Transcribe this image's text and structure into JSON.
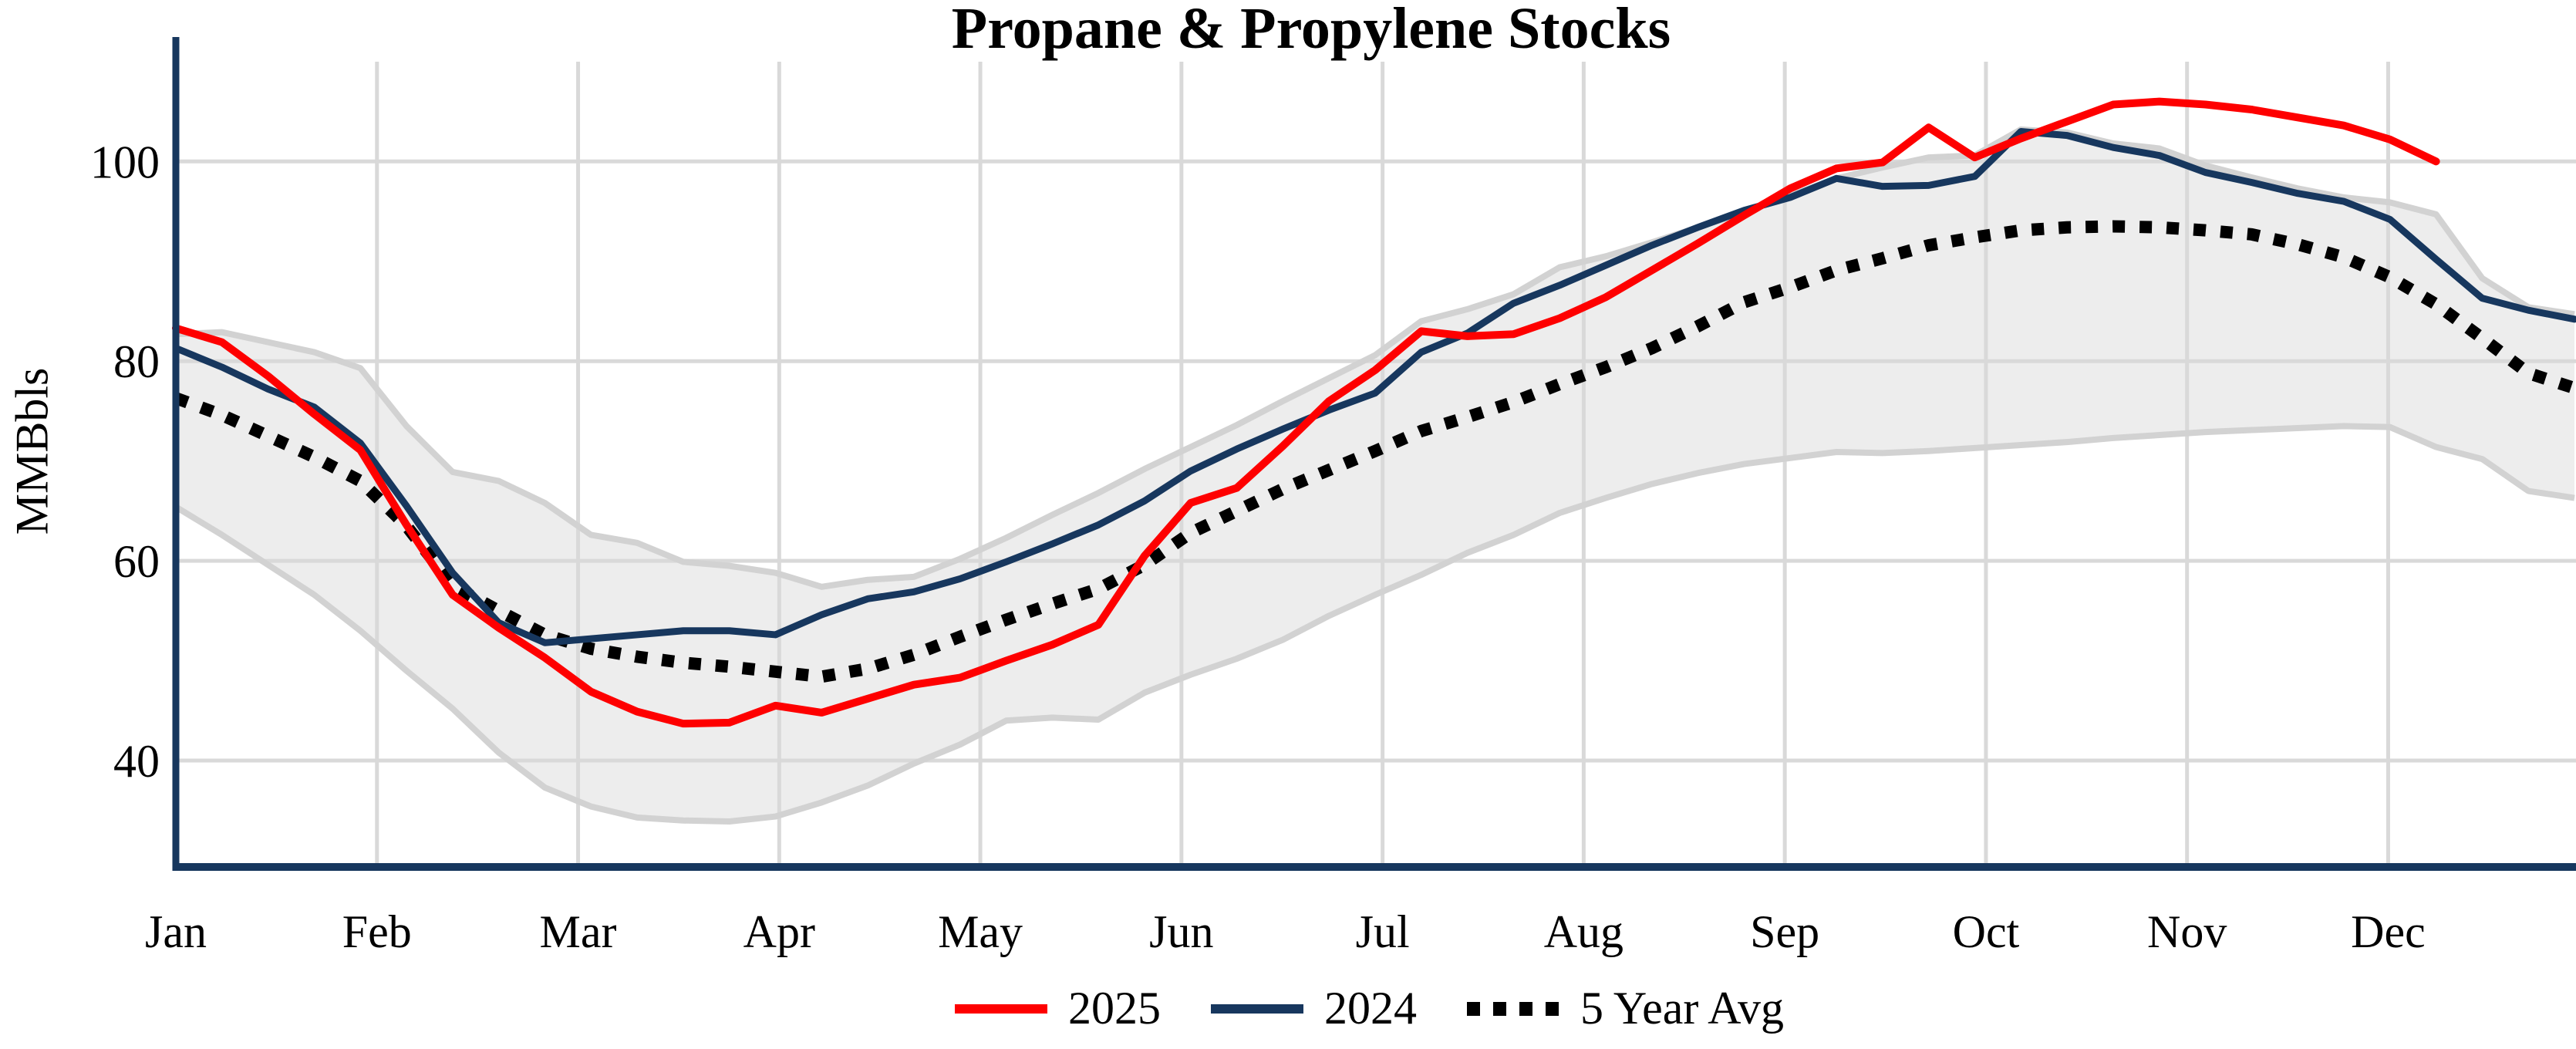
{
  "title": "Propane & Propylene Stocks",
  "y_axis": {
    "label": "MMBbls",
    "ticks": [
      100,
      80,
      60,
      40
    ]
  },
  "x_axis": {
    "months": [
      "Jan",
      "Feb",
      "Mar",
      "Apr",
      "May",
      "Jun",
      "Jul",
      "Aug",
      "Sep",
      "Oct",
      "Nov",
      "Dec"
    ]
  },
  "legend": [
    {
      "label": "2025",
      "color": "#fe0000",
      "style": "solid"
    },
    {
      "label": "2024",
      "color": "#17375e",
      "style": "solid"
    },
    {
      "label": "5 Year Avg",
      "color": "#000000",
      "style": "dotted"
    }
  ],
  "colors": {
    "red": "#fe0000",
    "navy": "#17375e",
    "black": "#000000",
    "grid": "#d9d9d9",
    "band_fill": "#ededed",
    "band_edge": "#d2d2d2",
    "axis": "#17375e"
  },
  "chart_data": {
    "type": "line",
    "title": "Propane & Propylene Stocks",
    "xlabel": "",
    "ylabel": "MMBbls",
    "ylim": [
      29,
      112
    ],
    "x_unit": "weekly points, Jan through Dec",
    "grid": true,
    "legend_position": "bottom-center",
    "series": [
      {
        "name": "2025",
        "color": "#fe0000",
        "style": "solid",
        "values": [
          83.3,
          81.9,
          78.5,
          74.7,
          71.1,
          63.6,
          56.6,
          53.3,
          50.3,
          46.9,
          44.9,
          43.7,
          43.8,
          45.5,
          44.8,
          46.2,
          47.6,
          48.3,
          50.0,
          51.6,
          53.6,
          60.5,
          65.8,
          67.3,
          71.5,
          76.0,
          79.1,
          83.0,
          82.5,
          82.7,
          84.3,
          86.4,
          89.1,
          91.8,
          94.6,
          97.3,
          99.3,
          99.9,
          103.4,
          100.4,
          102.3,
          104.0,
          105.7,
          106.0,
          105.7,
          105.2,
          104.4,
          103.6,
          102.2,
          100.0
        ]
      },
      {
        "name": "2024",
        "color": "#17375e",
        "style": "solid",
        "values": [
          81.3,
          79.4,
          77.2,
          75.4,
          71.8,
          65.5,
          58.8,
          53.8,
          51.8,
          52.2,
          52.6,
          53.0,
          53.0,
          52.6,
          54.6,
          56.2,
          56.9,
          58.2,
          59.9,
          61.7,
          63.6,
          66.0,
          69.0,
          71.2,
          73.2,
          75.1,
          76.8,
          80.9,
          82.8,
          85.8,
          87.6,
          89.6,
          91.6,
          93.4,
          95.1,
          96.4,
          98.3,
          97.5,
          97.6,
          98.5,
          103.0,
          102.6,
          101.4,
          100.6,
          98.9,
          97.9,
          96.8,
          96.0,
          94.2,
          90.2,
          86.3,
          85.1,
          84.2
        ]
      },
      {
        "name": "5 Year Avg",
        "color": "#000000",
        "style": "dotted",
        "values": [
          76.3,
          74.6,
          72.5,
          70.4,
          68.0,
          63.5,
          57.5,
          55.0,
          52.6,
          51.2,
          50.4,
          49.8,
          49.4,
          48.9,
          48.4,
          49.2,
          50.6,
          52.4,
          54.1,
          55.7,
          57.2,
          59.6,
          62.8,
          65.0,
          67.2,
          69.1,
          71.0,
          73.0,
          74.4,
          75.9,
          77.7,
          79.4,
          81.3,
          83.5,
          85.9,
          87.4,
          89.1,
          90.3,
          91.6,
          92.4,
          93.1,
          93.4,
          93.5,
          93.4,
          93.1,
          92.7,
          91.7,
          90.4,
          88.4,
          85.7,
          82.3,
          78.8,
          77.3
        ]
      }
    ],
    "band": {
      "name": "5 year range",
      "fill": "#ededed",
      "edge": "#d2d2d2",
      "max": [
        82.7,
        82.9,
        81.9,
        80.9,
        79.3,
        73.5,
        68.9,
        68.0,
        65.8,
        62.6,
        61.8,
        59.9,
        59.5,
        58.8,
        57.4,
        58.1,
        58.4,
        60.2,
        62.3,
        64.6,
        66.8,
        69.2,
        71.4,
        73.6,
        76.0,
        78.3,
        80.6,
        84.0,
        85.2,
        86.7,
        89.4,
        90.5,
        91.9,
        93.4,
        94.9,
        96.6,
        98.3,
        99.4,
        100.4,
        100.6,
        103.2,
        102.9,
        101.8,
        101.3,
        99.6,
        98.4,
        97.3,
        96.4,
        95.9,
        94.7,
        88.3,
        85.4,
        84.7
      ],
      "min": [
        65.4,
        62.6,
        59.6,
        56.6,
        53.0,
        49.0,
        45.2,
        40.8,
        37.3,
        35.4,
        34.3,
        34.0,
        33.9,
        34.4,
        35.8,
        37.5,
        39.7,
        41.6,
        44.0,
        44.3,
        44.1,
        46.8,
        48.6,
        50.2,
        52.1,
        54.5,
        56.6,
        58.6,
        60.8,
        62.6,
        64.8,
        66.3,
        67.7,
        68.8,
        69.7,
        70.3,
        70.9,
        70.8,
        71.0,
        71.3,
        71.6,
        71.9,
        72.3,
        72.6,
        72.9,
        73.1,
        73.3,
        73.5,
        73.4,
        71.4,
        70.2,
        67.0,
        66.3
      ]
    }
  }
}
